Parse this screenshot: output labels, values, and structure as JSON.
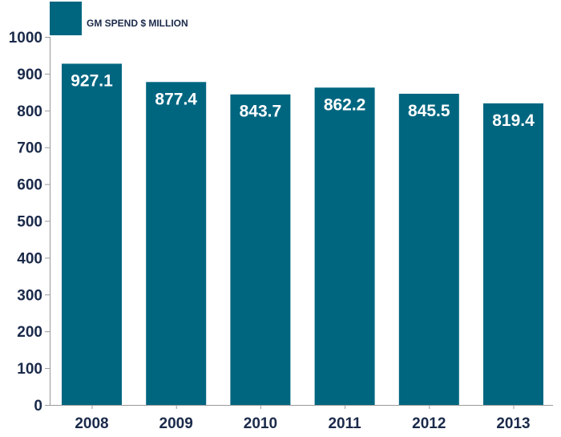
{
  "chart_data": {
    "type": "bar",
    "categories": [
      "2008",
      "2009",
      "2010",
      "2011",
      "2012",
      "2013"
    ],
    "series": [
      {
        "name": "GM SPEND $ MILLION",
        "values": [
          927.1,
          877.4,
          843.7,
          862.2,
          845.5,
          819.4
        ],
        "color": "#006680"
      }
    ],
    "data_labels": [
      "927.1",
      "877.4",
      "843.7",
      "862.2",
      "845.5",
      "819.4"
    ],
    "y_ticks": [
      "0",
      "100",
      "200",
      "300",
      "400",
      "500",
      "600",
      "700",
      "800",
      "900",
      "1000"
    ],
    "ylim": [
      0,
      1000
    ],
    "grid": false,
    "legend_position": "top-left"
  }
}
